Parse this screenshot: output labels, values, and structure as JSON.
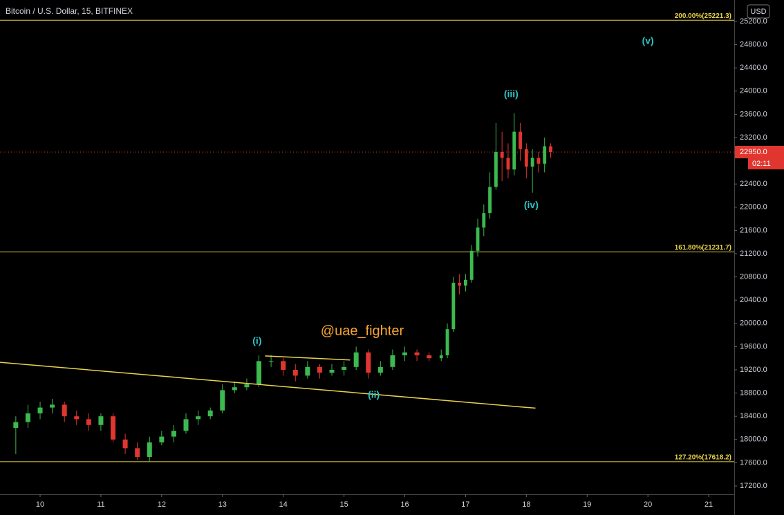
{
  "chart_data": {
    "type": "candlestick",
    "title": "Bitcoin / U.S. Dollar, 15, BITFINEX",
    "currency": "USD",
    "up_color": "#3cb94f",
    "down_color": "#e0362f",
    "x": [
      9.6,
      9.8,
      10.0,
      10.2,
      10.4,
      10.6,
      10.8,
      11.0,
      11.2,
      11.4,
      11.6,
      11.8,
      12.0,
      12.2,
      12.4,
      12.6,
      12.8,
      13.0,
      13.2,
      13.4,
      13.6,
      13.8,
      14.0,
      14.2,
      14.4,
      14.6,
      14.8,
      15.0,
      15.2,
      15.4,
      15.6,
      15.8,
      16.0,
      16.2,
      16.4,
      16.6,
      16.7,
      16.8,
      16.9,
      17.0,
      17.1,
      17.2,
      17.3,
      17.4,
      17.5,
      17.6,
      17.7,
      17.8,
      17.9,
      18.0,
      18.1,
      18.2,
      18.3,
      18.4
    ],
    "open": [
      18200,
      18300,
      18450,
      18550,
      18600,
      18400,
      18350,
      18250,
      18400,
      18000,
      17850,
      17700,
      17950,
      18050,
      18150,
      18350,
      18400,
      18500,
      18850,
      18900,
      18950,
      19350,
      19350,
      19200,
      19100,
      19250,
      19150,
      19200,
      19250,
      19500,
      19150,
      19250,
      19450,
      19500,
      19450,
      19400,
      19450,
      19900,
      20700,
      20650,
      20750,
      21250,
      21650,
      21900,
      22350,
      22950,
      22850,
      22650,
      23300,
      23000,
      22700,
      22850,
      22750,
      23050
    ],
    "high": [
      18400,
      18600,
      18650,
      18700,
      18650,
      18500,
      18450,
      18450,
      18450,
      18100,
      17950,
      18050,
      18150,
      18250,
      18450,
      18500,
      18550,
      18950,
      19000,
      19050,
      19450,
      19450,
      19400,
      19300,
      19350,
      19300,
      19300,
      19350,
      19600,
      19550,
      19350,
      19550,
      19600,
      19550,
      19500,
      19550,
      20000,
      20800,
      20850,
      20850,
      21350,
      21800,
      22050,
      22600,
      23450,
      23300,
      23100,
      23620,
      23450,
      23100,
      23000,
      22950,
      23200,
      23100
    ],
    "low": [
      17750,
      18200,
      18350,
      18450,
      18300,
      18250,
      18150,
      18150,
      17950,
      17750,
      17650,
      17620,
      17900,
      17950,
      18100,
      18250,
      18350,
      18450,
      18800,
      18850,
      18900,
      19250,
      19100,
      19000,
      19050,
      19050,
      19100,
      19100,
      19200,
      19050,
      19100,
      19200,
      19350,
      19350,
      19350,
      19350,
      19400,
      19850,
      20500,
      20550,
      20700,
      21150,
      21500,
      21800,
      22300,
      22450,
      22500,
      22550,
      22800,
      22500,
      22250,
      22600,
      22600,
      22850
    ],
    "close": [
      18300,
      18450,
      18550,
      18600,
      18400,
      18350,
      18250,
      18400,
      18000,
      17850,
      17700,
      17950,
      18050,
      18150,
      18350,
      18400,
      18500,
      18850,
      18900,
      18950,
      19350,
      19350,
      19200,
      19100,
      19250,
      19150,
      19200,
      19250,
      19500,
      19150,
      19250,
      19450,
      19500,
      19450,
      19400,
      19450,
      19900,
      20700,
      20650,
      20750,
      21250,
      21650,
      21900,
      22350,
      22950,
      22850,
      22650,
      23300,
      23000,
      22700,
      22850,
      22750,
      23050,
      22950
    ],
    "xlim": [
      9.34,
      21.42
    ],
    "ylim": [
      17057,
      25569
    ],
    "xticks": [
      10,
      11,
      12,
      13,
      14,
      15,
      16,
      17,
      18,
      19,
      20,
      21
    ],
    "yticks": [
      {
        "value": 17200,
        "label": "17200.0"
      },
      {
        "value": 17600,
        "label": "17600.0"
      },
      {
        "value": 18000,
        "label": "18000.0"
      },
      {
        "value": 18400,
        "label": "18400.0"
      },
      {
        "value": 18800,
        "label": "18800.0"
      },
      {
        "value": 19200,
        "label": "19200.0"
      },
      {
        "value": 19600,
        "label": "19600.0"
      },
      {
        "value": 20000,
        "label": "20000.0"
      },
      {
        "value": 20400,
        "label": "20400.0"
      },
      {
        "value": 20800,
        "label": "20800.0"
      },
      {
        "value": 21200,
        "label": "21200.0"
      },
      {
        "value": 21600,
        "label": "21600.0"
      },
      {
        "value": 22000,
        "label": "22000.0"
      },
      {
        "value": 22400,
        "label": "22400.0"
      },
      {
        "value": 23200,
        "label": "23200.0"
      },
      {
        "value": 23600,
        "label": "23600.0"
      },
      {
        "value": 24000,
        "label": "24000.0"
      },
      {
        "value": 24400,
        "label": "24400.0"
      },
      {
        "value": 24800,
        "label": "24800.0"
      },
      {
        "value": 25200,
        "label": "25200.0"
      }
    ],
    "levels": [
      {
        "value": 25221.3,
        "label": "200.00%(25221.3)",
        "color": "#e8d34a"
      },
      {
        "value": 21231.7,
        "label": "161.80%(21231.7)",
        "color": "#e8d34a"
      },
      {
        "value": 17618.2,
        "label": "127.20%(17618.2)",
        "color": "#e8d34a"
      }
    ],
    "lines": [
      {
        "x": [
          9.34,
          18.15
        ],
        "y": [
          19330,
          18540
        ],
        "color": "#e8d34a"
      },
      {
        "x": [
          13.7,
          15.1
        ],
        "y": [
          19440,
          19370
        ],
        "color": "#e8d34a"
      }
    ],
    "annotations": [
      {
        "text": "(i)",
        "x": 13.57,
        "y": 19690,
        "color": "#2ec4c4"
      },
      {
        "text": "(ii)",
        "x": 15.49,
        "y": 18760,
        "color": "#2ec4c4"
      },
      {
        "text": "(iii)",
        "x": 17.75,
        "y": 23940,
        "color": "#2ec4c4"
      },
      {
        "text": "(iv)",
        "x": 18.08,
        "y": 22030,
        "color": "#2ec4c4"
      },
      {
        "text": "(v)",
        "x": 20.0,
        "y": 24860,
        "color": "#2ec4c4"
      },
      {
        "text": "@uae_fighter",
        "x": 15.3,
        "y": 19860,
        "color": "#f7a531"
      }
    ],
    "last_price": {
      "value": 22950,
      "label": "22950.0",
      "color": "#e0362f"
    },
    "countdown": "02:11"
  }
}
